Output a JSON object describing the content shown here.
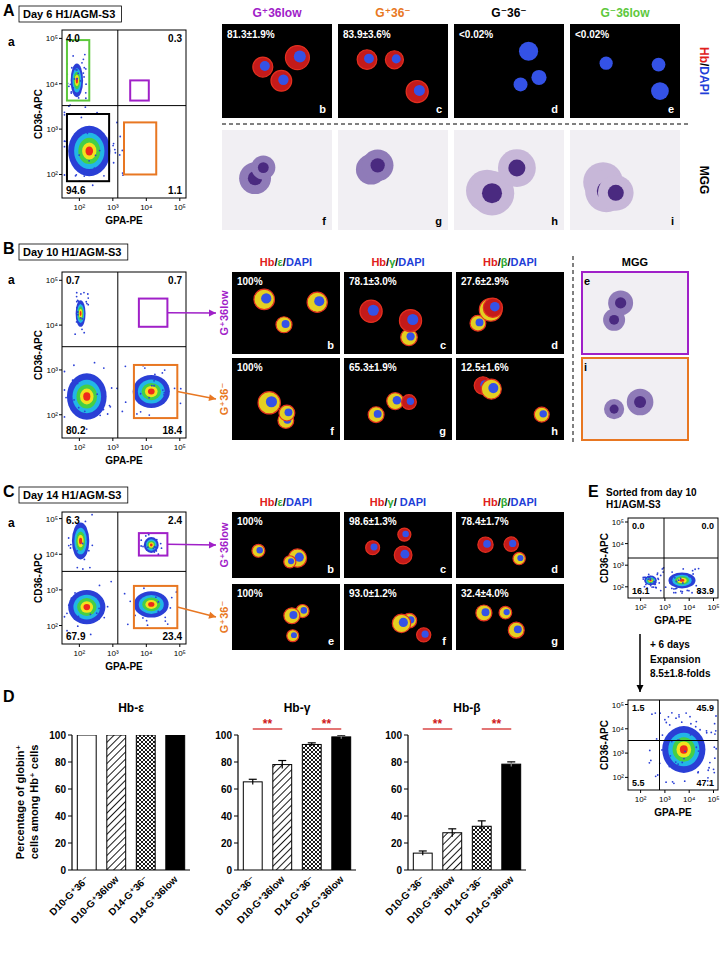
{
  "panels": [
    {
      "label": "A",
      "title": "Day 6 H1/AGM-S3",
      "plot_label": "a",
      "flow": {
        "x_label": "GPA-PE",
        "y_label": "CD36-APC",
        "ticks": [
          "10²",
          "10³",
          "10⁴",
          "10⁵"
        ],
        "quadrants": [
          "4.0",
          "0.3",
          "94.6",
          "1.1"
        ]
      },
      "stain": "Hb/DAPI",
      "mgg": "MGG",
      "columns": [
        {
          "name": "G⁺36low",
          "color": "#a020c8",
          "value": "81.3±1.9%",
          "image": "b",
          "mgg_image": "f"
        },
        {
          "name": "G⁺36⁻",
          "color": "#e87722",
          "value": "83.9±3.6%",
          "image": "c",
          "mgg_image": "g"
        },
        {
          "name": "G⁻36⁻",
          "color": "#000000",
          "value": "<0.02%",
          "image": "d",
          "mgg_image": "h"
        },
        {
          "name": "G⁻36low",
          "color": "#5dc83c",
          "value": "<0.02%",
          "image": "e",
          "mgg_image": "i"
        }
      ]
    },
    {
      "label": "B",
      "title": "Day 10 H1/AGM-S3",
      "plot_label": "a",
      "flow": {
        "x_label": "GPA-PE",
        "y_label": "CD36-APC",
        "ticks": [
          "10²",
          "10³",
          "10⁴",
          "10⁵"
        ],
        "quadrants": [
          "0.7",
          "0.7",
          "80.2",
          "18.4"
        ]
      },
      "stains": [
        "Hb/ε/DAPI",
        "Hb/γ/DAPI",
        "Hb/β/DAPI"
      ],
      "mgg": "MGG",
      "rows": [
        {
          "name": "G⁺36low",
          "color": "#a020c8",
          "values": [
            "100%",
            "78.1±3.0%",
            "27.6±2.9%"
          ],
          "images": [
            "b",
            "c",
            "d"
          ],
          "mgg_image": "e"
        },
        {
          "name": "G⁺36⁻",
          "color": "#e87722",
          "values": [
            "100%",
            "65.3±1.9%",
            "12.5±1.6%"
          ],
          "images": [
            "f",
            "g",
            "h"
          ],
          "mgg_image": "i"
        }
      ]
    },
    {
      "label": "C",
      "title": "Day 14 H1/AGM-S3",
      "plot_label": "a",
      "flow": {
        "x_label": "GPA-PE",
        "y_label": "CD36-APC",
        "ticks": [
          "10²",
          "10³",
          "10⁴",
          "10⁵"
        ],
        "quadrants": [
          "6.3",
          "2.4",
          "67.9",
          "23.4"
        ]
      },
      "stains": [
        "Hb/ε/DAPI",
        "Hb/γ/ DAPI",
        "Hb/β/DAPI"
      ],
      "rows": [
        {
          "name": "G⁺36low",
          "color": "#a020c8",
          "values": [
            "100%",
            "98.6±1.3%",
            "78.4±1.7%"
          ],
          "images": [
            "b",
            "c",
            "d"
          ]
        },
        {
          "name": "G⁺36⁻",
          "color": "#e87722",
          "values": [
            "100%",
            "93.0±1.2%",
            "32.4±4.0%"
          ],
          "images": [
            "e",
            "f",
            "g"
          ]
        }
      ]
    },
    {
      "label": "E",
      "title": [
        "Sorted  from day 10",
        "H1/AGM-S3"
      ],
      "flows": [
        {
          "x_label": "GPA-PE",
          "y_label": "CD36-APC",
          "ticks": [
            "10²",
            "10³",
            "10⁴",
            "10⁵"
          ],
          "quadrants": [
            "0.0",
            "0.0",
            "16.1",
            "83.9"
          ]
        },
        {
          "x_label": "GPA-PE",
          "y_label": "CD36-APC",
          "ticks": [
            "10²",
            "10³",
            "10⁴",
            "10⁵"
          ],
          "quadrants": [
            "1.5",
            "45.9",
            "5.5",
            "47.1"
          ]
        }
      ],
      "step": "+ 6 days",
      "expansion": [
        "Expansion",
        "8.5±1.8-folds"
      ]
    }
  ],
  "chart_panel": {
    "label": "D",
    "y_label": [
      "Percentage of globin⁺",
      "cells among Hb⁺ cells"
    ]
  },
  "chart_data": [
    {
      "type": "bar",
      "title": "Hb-ε",
      "categories": [
        "D10-G⁺36⁻",
        "D10-G⁺36low",
        "D14-G⁺36⁻",
        "D14-G⁺36low"
      ],
      "values": [
        100,
        100,
        100,
        100
      ],
      "ylim": [
        0,
        100
      ],
      "yticks": [
        0,
        20,
        40,
        60,
        80,
        100
      ]
    },
    {
      "type": "bar",
      "title": "Hb-γ",
      "categories": [
        "D10-G⁺36⁻",
        "D10-G⁺36low",
        "D14-G⁺36⁻",
        "D14-G⁺36low"
      ],
      "values": [
        65.3,
        78.1,
        93.0,
        98.6
      ],
      "errors": [
        1.9,
        3.0,
        1.2,
        1.3
      ],
      "significance": [
        "**",
        "**"
      ],
      "ylim": [
        0,
        100
      ],
      "yticks": [
        0,
        20,
        40,
        60,
        80,
        100
      ]
    },
    {
      "type": "bar",
      "title": "Hb-β",
      "categories": [
        "D10-G⁺36⁻",
        "D10-G⁺36low",
        "D14-G⁺36⁻",
        "D14-G⁺36low"
      ],
      "values": [
        12.5,
        27.6,
        32.4,
        78.4
      ],
      "errors": [
        1.6,
        2.9,
        4.0,
        1.7
      ],
      "significance": [
        "**",
        "**"
      ],
      "ylim": [
        0,
        100
      ],
      "yticks": [
        0,
        20,
        40,
        60,
        80,
        100
      ]
    }
  ]
}
